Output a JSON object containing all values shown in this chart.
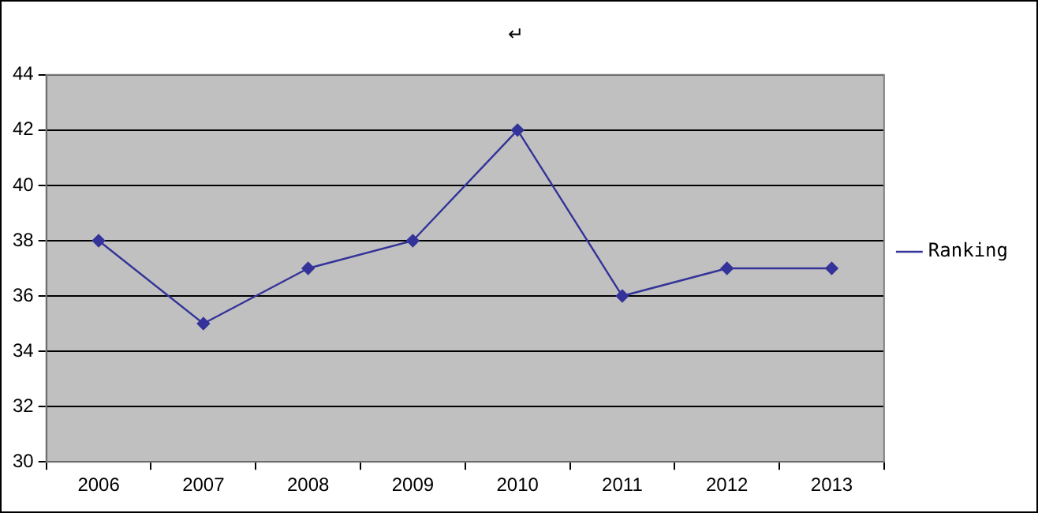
{
  "chart_data": {
    "type": "line",
    "title": "↵",
    "categories": [
      "2006",
      "2007",
      "2008",
      "2009",
      "2010",
      "2011",
      "2012",
      "2013"
    ],
    "series": [
      {
        "name": "Ranking",
        "color": "#333399",
        "values": [
          38,
          35,
          37,
          38,
          42,
          36,
          37,
          37
        ]
      }
    ],
    "ylim": [
      30,
      44
    ],
    "yticks": [
      30,
      32,
      34,
      36,
      38,
      40,
      42,
      44
    ],
    "grid": "y",
    "legend": "right",
    "marker": "diamond",
    "line_style": "solid"
  }
}
